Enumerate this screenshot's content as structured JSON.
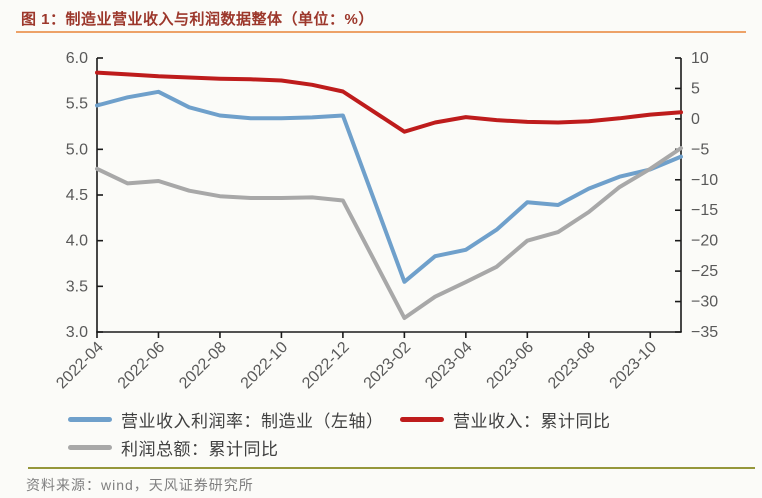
{
  "header": {
    "title": "图 1：制造业营业收入与利润数据整体（单位：%）"
  },
  "footer": {
    "source": "资料来源：wind，天风证券研究所"
  },
  "colors": {
    "title_text": "#9C372B",
    "title_underline": "#EDA268",
    "footer_rule": "#95973B",
    "footer_text": "#7F7F7F",
    "axis_line": "#1A1A1A",
    "axis_text": "#595959",
    "series_blue": "#6FA0CB",
    "series_red": "#BE1C1C",
    "series_gray": "#A8A8A8"
  },
  "legend": {
    "items": [
      {
        "label": "营业收入利润率：制造业（左轴）",
        "color_key": "series_blue"
      },
      {
        "label": "营业收入：累计同比",
        "color_key": "series_red"
      },
      {
        "label": "利润总额：累计同比",
        "color_key": "series_gray"
      }
    ]
  },
  "chart_data": {
    "type": "line",
    "title": "制造业营业收入与利润数据整体（单位：%）",
    "categories": [
      "2022-04",
      "2022-05",
      "2022-06",
      "2022-07",
      "2022-08",
      "2022-09",
      "2022-10",
      "2022-11",
      "2022-12",
      "2023-02",
      "2023-03",
      "2023-04",
      "2023-05",
      "2023-06",
      "2023-07",
      "2023-08",
      "2023-09",
      "2023-10",
      "2023-11"
    ],
    "month_offsets": [
      0,
      1,
      2,
      3,
      4,
      5,
      6,
      7,
      8,
      10,
      11,
      12,
      13,
      14,
      15,
      16,
      17,
      18,
      19
    ],
    "x_tick_labels": [
      "2022-04",
      "2022-06",
      "2022-08",
      "2022-10",
      "2022-12",
      "2023-02",
      "2023-04",
      "2023-06",
      "2023-08",
      "2023-10"
    ],
    "x_tick_month_offsets": [
      0,
      2,
      4,
      6,
      8,
      10,
      12,
      14,
      16,
      18
    ],
    "series": [
      {
        "name": "营业收入利润率：制造业（左轴）",
        "axis": "left",
        "color_key": "series_blue",
        "values": [
          5.48,
          5.57,
          5.63,
          5.46,
          5.37,
          5.34,
          5.34,
          5.35,
          5.37,
          3.55,
          3.83,
          3.9,
          4.12,
          4.42,
          4.39,
          4.57,
          4.7,
          4.78,
          4.92
        ]
      },
      {
        "name": "营业收入：累计同比",
        "axis": "right",
        "color_key": "series_red",
        "values": [
          7.6,
          7.3,
          7.0,
          6.8,
          6.6,
          6.5,
          6.3,
          5.6,
          4.5,
          -2.1,
          -0.6,
          0.3,
          -0.2,
          -0.5,
          -0.6,
          -0.4,
          0.1,
          0.7,
          1.1
        ]
      },
      {
        "name": "利润总额：累计同比",
        "axis": "right",
        "color_key": "series_gray",
        "values": [
          -8.2,
          -10.6,
          -10.2,
          -11.8,
          -12.7,
          -13.0,
          -13.0,
          -12.9,
          -13.4,
          -32.7,
          -29.2,
          -26.8,
          -24.3,
          -20.0,
          -18.6,
          -15.3,
          -11.2,
          -8.2,
          -4.8
        ]
      }
    ],
    "left_axis": {
      "min": 3.0,
      "max": 6.0,
      "step": 0.5,
      "decimals": 1
    },
    "right_axis": {
      "min": -35,
      "max": 10,
      "step": 5,
      "decimals": 0
    },
    "grid": false,
    "legend_position": "bottom"
  }
}
